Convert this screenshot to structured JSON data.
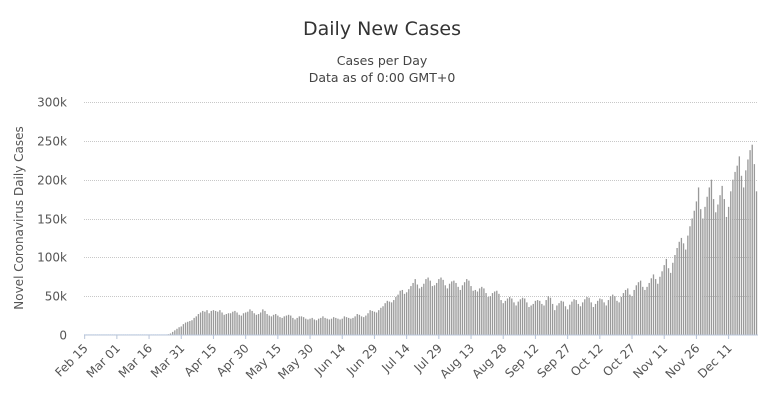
{
  "chart_data": {
    "type": "bar",
    "title": "Daily New Cases",
    "subtitles": [
      "Cases per Day",
      "Data as of 0:00 GMT+0"
    ],
    "xlabel": "",
    "ylabel": "Novel Coronavirus Daily Cases",
    "ylim": [
      0,
      300000
    ],
    "y_ticks": [
      {
        "value": 0,
        "label": "0"
      },
      {
        "value": 50000,
        "label": "50k"
      },
      {
        "value": 100000,
        "label": "100k"
      },
      {
        "value": 150000,
        "label": "150k"
      },
      {
        "value": 200000,
        "label": "200k"
      },
      {
        "value": 250000,
        "label": "250k"
      },
      {
        "value": 300000,
        "label": "300k"
      }
    ],
    "x_tick_labels": [
      "Feb 15",
      "Mar 01",
      "Mar 16",
      "Mar 31",
      "Apr 15",
      "Apr 30",
      "May 15",
      "May 30",
      "Jun 14",
      "Jun 29",
      "Jul 14",
      "Jul 29",
      "Aug 13",
      "Aug 28",
      "Sep 12",
      "Sep 27",
      "Oct 12",
      "Oct 27",
      "Nov 11",
      "Nov 26",
      "Dec 11"
    ],
    "x_tick_every": 15,
    "first_date": "Feb 15",
    "last_date": "Dec 15",
    "grid": true,
    "bar_color": "#999999",
    "values": [
      50,
      50,
      50,
      50,
      50,
      50,
      50,
      50,
      50,
      50,
      50,
      50,
      50,
      50,
      50,
      50,
      50,
      50,
      50,
      50,
      50,
      50,
      50,
      50,
      50,
      50,
      50,
      50,
      50,
      50,
      50,
      50,
      50,
      50,
      50,
      50,
      50,
      100,
      200,
      1000,
      2000,
      4000,
      6000,
      8000,
      10000,
      11000,
      14000,
      16000,
      17000,
      18000,
      19000,
      22000,
      24000,
      27000,
      29000,
      31000,
      30000,
      32000,
      28000,
      31000,
      32000,
      31000,
      30000,
      32000,
      29000,
      26000,
      27000,
      28000,
      28000,
      30000,
      31000,
      29000,
      26000,
      25000,
      28000,
      29000,
      30000,
      33000,
      31000,
      28000,
      26000,
      27000,
      29000,
      33000,
      31000,
      27000,
      25000,
      24000,
      26000,
      27000,
      25000,
      23000,
      22000,
      24000,
      25000,
      26000,
      25000,
      22000,
      20000,
      22000,
      24000,
      24000,
      23000,
      21000,
      20000,
      21000,
      22000,
      20000,
      19000,
      21000,
      22000,
      24000,
      22000,
      21000,
      20000,
      21000,
      23000,
      22000,
      21000,
      20000,
      21000,
      24000,
      23000,
      22000,
      21000,
      22000,
      24000,
      27000,
      26000,
      24000,
      23000,
      25000,
      28000,
      32000,
      31000,
      30000,
      29000,
      32000,
      35000,
      37000,
      41000,
      44000,
      43000,
      42000,
      45000,
      49000,
      52000,
      57000,
      58000,
      53000,
      55000,
      59000,
      63000,
      67000,
      72000,
      65000,
      60000,
      62000,
      66000,
      72000,
      74000,
      70000,
      63000,
      64000,
      67000,
      72000,
      74000,
      71000,
      64000,
      60000,
      66000,
      69000,
      70000,
      67000,
      62000,
      58000,
      64000,
      68000,
      72000,
      70000,
      63000,
      57000,
      58000,
      56000,
      60000,
      62000,
      60000,
      54000,
      49000,
      50000,
      54000,
      56000,
      57000,
      53000,
      45000,
      41000,
      44000,
      47000,
      49000,
      47000,
      42000,
      38000,
      43000,
      46000,
      48000,
      47000,
      42000,
      36000,
      38000,
      40000,
      44000,
      45000,
      44000,
      40000,
      38000,
      45000,
      50000,
      48000,
      40000,
      32000,
      38000,
      41000,
      44000,
      43000,
      37000,
      33000,
      39000,
      43000,
      46000,
      45000,
      40000,
      37000,
      42000,
      46000,
      49000,
      48000,
      42000,
      36000,
      40000,
      44000,
      47000,
      46000,
      42000,
      38000,
      45000,
      50000,
      52000,
      50000,
      44000,
      42000,
      49000,
      54000,
      58000,
      60000,
      52000,
      50000,
      58000,
      64000,
      68000,
      70000,
      62000,
      58000,
      62000,
      67000,
      73000,
      78000,
      72000,
      66000,
      75000,
      82000,
      90000,
      98000,
      86000,
      80000,
      93000,
      103000,
      112000,
      120000,
      125000,
      118000,
      110000,
      128000,
      140000,
      150000,
      160000,
      172000,
      190000,
      162000,
      150000,
      165000,
      178000,
      190000,
      200000,
      175000,
      158000,
      168000,
      180000,
      192000,
      175000,
      152000,
      165000,
      185000,
      200000,
      210000,
      218000,
      230000,
      205000,
      190000,
      212000,
      226000,
      238000,
      245000,
      220000,
      185000
    ]
  }
}
